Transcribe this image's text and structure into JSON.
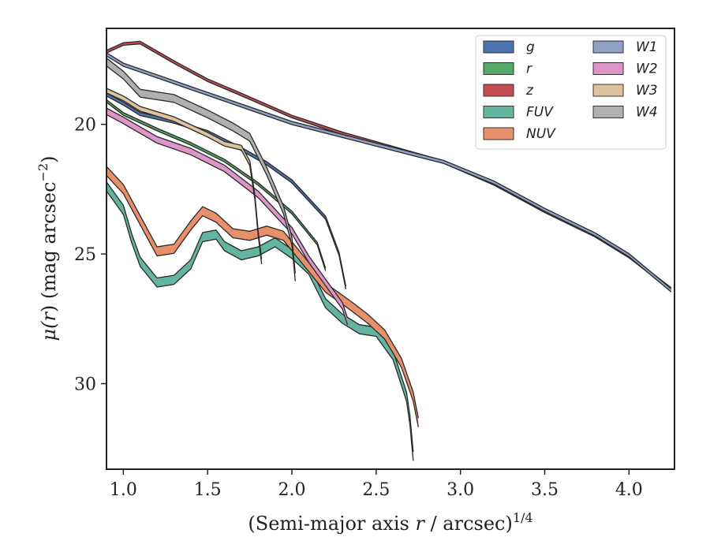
{
  "chart_data": {
    "type": "line",
    "xlabel": "(Semi-major axis r / arcsec)^{1/4}",
    "xlabel_parts": [
      "(Semi-major axis ",
      "r",
      " / arcsec)",
      "1/4"
    ],
    "ylabel": "μ(r) (mag arcsec^-2)",
    "ylabel_parts": [
      "μ(",
      "r",
      ") (mag arcsec",
      "−2",
      ")"
    ],
    "xlim": [
      0.9,
      4.27
    ],
    "ylim": [
      33.3,
      16.3
    ],
    "y_inverted": true,
    "x_ticks": [
      1.0,
      1.5,
      2.0,
      2.5,
      3.0,
      3.5,
      4.0
    ],
    "x_tick_labels": [
      "1.0",
      "1.5",
      "2.0",
      "2.5",
      "3.0",
      "3.5",
      "4.0"
    ],
    "y_ticks": [
      20,
      25,
      30
    ],
    "y_tick_labels": [
      "20",
      "25",
      "30"
    ],
    "legend_position": "top-right",
    "legend_columns": 2,
    "series": [
      {
        "name": "g",
        "color": "#4c72b0",
        "band_width": 0.12,
        "points": [
          [
            0.9,
            18.85
          ],
          [
            1.0,
            19.2
          ],
          [
            1.1,
            19.6
          ],
          [
            1.2,
            19.75
          ],
          [
            1.3,
            19.9
          ],
          [
            1.5,
            20.3
          ],
          [
            1.7,
            20.95
          ],
          [
            1.85,
            21.5
          ],
          [
            2.0,
            22.2
          ],
          [
            2.2,
            23.6
          ],
          [
            2.28,
            25.0
          ],
          [
            2.32,
            26.3
          ]
        ]
      },
      {
        "name": "r",
        "color": "#55a868",
        "band_width": 0.1,
        "points": [
          [
            0.9,
            19.1
          ],
          [
            1.0,
            19.6
          ],
          [
            1.2,
            20.2
          ],
          [
            1.4,
            20.75
          ],
          [
            1.6,
            21.4
          ],
          [
            1.8,
            22.3
          ],
          [
            2.0,
            23.4
          ],
          [
            2.15,
            24.6
          ],
          [
            2.2,
            25.6
          ]
        ]
      },
      {
        "name": "z",
        "color": "#c44e52",
        "band_width": 0.1,
        "points": [
          [
            0.9,
            17.2
          ],
          [
            1.0,
            16.9
          ],
          [
            1.1,
            16.85
          ],
          [
            1.3,
            17.6
          ],
          [
            1.5,
            18.3
          ],
          [
            1.7,
            18.85
          ],
          [
            2.0,
            19.7
          ],
          [
            2.3,
            20.35
          ],
          [
            2.6,
            20.9
          ],
          [
            2.9,
            21.45
          ],
          [
            3.2,
            22.3
          ],
          [
            3.5,
            23.35
          ],
          [
            3.8,
            24.3
          ],
          [
            4.0,
            25.1
          ],
          [
            4.25,
            26.35
          ]
        ]
      },
      {
        "name": "FUV",
        "color": "#64b5a0",
        "band_width": 0.35,
        "points": [
          [
            0.9,
            22.4
          ],
          [
            1.0,
            23.3
          ],
          [
            1.05,
            24.4
          ],
          [
            1.1,
            25.3
          ],
          [
            1.2,
            26.1
          ],
          [
            1.3,
            26.0
          ],
          [
            1.4,
            25.4
          ],
          [
            1.47,
            24.35
          ],
          [
            1.55,
            24.25
          ],
          [
            1.6,
            24.7
          ],
          [
            1.7,
            25.05
          ],
          [
            1.8,
            24.9
          ],
          [
            1.9,
            24.55
          ],
          [
            2.0,
            25.0
          ],
          [
            2.1,
            25.6
          ],
          [
            2.2,
            26.9
          ],
          [
            2.3,
            27.5
          ],
          [
            2.4,
            27.9
          ],
          [
            2.5,
            28.0
          ],
          [
            2.6,
            28.9
          ],
          [
            2.68,
            30.5
          ],
          [
            2.7,
            31.4
          ],
          [
            2.72,
            32.8
          ]
        ]
      },
      {
        "name": "NUV",
        "color": "#e8906a",
        "band_width": 0.35,
        "points": [
          [
            0.9,
            21.8
          ],
          [
            1.0,
            22.5
          ],
          [
            1.1,
            23.7
          ],
          [
            1.2,
            24.9
          ],
          [
            1.3,
            24.8
          ],
          [
            1.4,
            23.9
          ],
          [
            1.47,
            23.35
          ],
          [
            1.55,
            23.6
          ],
          [
            1.65,
            24.2
          ],
          [
            1.75,
            24.3
          ],
          [
            1.85,
            24.1
          ],
          [
            1.95,
            24.3
          ],
          [
            2.05,
            25.1
          ],
          [
            2.2,
            26.3
          ],
          [
            2.35,
            27.0
          ],
          [
            2.45,
            27.5
          ],
          [
            2.55,
            28.1
          ],
          [
            2.65,
            29.2
          ],
          [
            2.72,
            30.5
          ],
          [
            2.75,
            31.5
          ]
        ]
      },
      {
        "name": "W1",
        "color": "#8fa1c7",
        "band_width": 0.12,
        "points": [
          [
            0.9,
            17.3
          ],
          [
            1.0,
            17.7
          ],
          [
            1.2,
            18.15
          ],
          [
            1.4,
            18.6
          ],
          [
            1.6,
            19.05
          ],
          [
            1.8,
            19.5
          ],
          [
            2.0,
            19.95
          ],
          [
            2.3,
            20.45
          ],
          [
            2.6,
            20.95
          ],
          [
            2.9,
            21.45
          ],
          [
            3.2,
            22.25
          ],
          [
            3.5,
            23.3
          ],
          [
            3.8,
            24.25
          ],
          [
            4.0,
            25.05
          ],
          [
            4.25,
            26.4
          ]
        ]
      },
      {
        "name": "W2",
        "color": "#dd94c8",
        "band_width": 0.25,
        "points": [
          [
            0.9,
            19.5
          ],
          [
            1.0,
            19.85
          ],
          [
            1.2,
            20.6
          ],
          [
            1.4,
            21.05
          ],
          [
            1.6,
            21.7
          ],
          [
            1.8,
            22.7
          ],
          [
            2.0,
            24.1
          ],
          [
            2.1,
            25.2
          ],
          [
            2.2,
            26.1
          ],
          [
            2.3,
            27.0
          ],
          [
            2.33,
            27.6
          ]
        ]
      },
      {
        "name": "W3",
        "color": "#ddc29e",
        "band_width": 0.18,
        "points": [
          [
            0.9,
            18.7
          ],
          [
            1.0,
            19.0
          ],
          [
            1.1,
            19.4
          ],
          [
            1.3,
            19.8
          ],
          [
            1.5,
            20.4
          ],
          [
            1.6,
            20.75
          ],
          [
            1.7,
            20.9
          ],
          [
            1.75,
            21.5
          ],
          [
            1.78,
            22.8
          ],
          [
            1.8,
            24.2
          ],
          [
            1.82,
            25.3
          ]
        ]
      },
      {
        "name": "W4",
        "color": "#b0b0b0",
        "band_width": 0.3,
        "points": [
          [
            0.9,
            17.6
          ],
          [
            1.0,
            18.1
          ],
          [
            1.1,
            18.8
          ],
          [
            1.3,
            19.0
          ],
          [
            1.5,
            19.6
          ],
          [
            1.65,
            20.1
          ],
          [
            1.75,
            20.5
          ],
          [
            1.85,
            21.8
          ],
          [
            1.95,
            23.3
          ],
          [
            2.0,
            24.5
          ],
          [
            2.02,
            25.9
          ]
        ]
      }
    ]
  }
}
